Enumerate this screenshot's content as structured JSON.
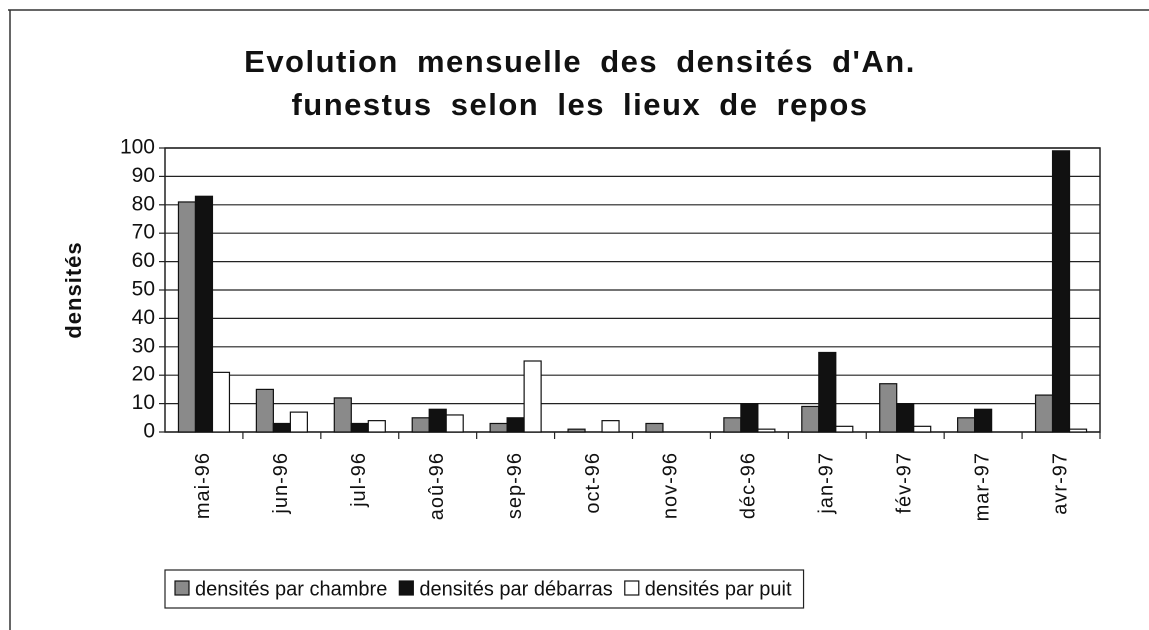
{
  "chart_data": {
    "type": "bar",
    "title": "Evolution mensuelle des densités d'An. funestus selon les lieux de repos",
    "y_label": "densités",
    "categories": [
      "mai-96",
      "jun-96",
      "jul-96",
      "aoû-96",
      "sep-96",
      "oct-96",
      "nov-96",
      "déc-96",
      "jan-97",
      "fév-97",
      "mar-97",
      "avr-97"
    ],
    "series": [
      {
        "name": "densités par chambre",
        "color": "#8a8a8a",
        "values": [
          81,
          15,
          12,
          5,
          3,
          1,
          3,
          5,
          9,
          17,
          5,
          13
        ]
      },
      {
        "name": "densités par débarras",
        "color": "#111111",
        "values": [
          83,
          3,
          3,
          8,
          5,
          0,
          0,
          10,
          28,
          10,
          8,
          99
        ]
      },
      {
        "name": "densités par puit",
        "color": "#ffffff",
        "values": [
          21,
          7,
          4,
          6,
          25,
          4,
          0,
          1,
          2,
          2,
          0,
          1
        ]
      }
    ],
    "ylim": [
      0,
      100
    ],
    "yticks": [
      0,
      10,
      20,
      30,
      40,
      50,
      60,
      70,
      80,
      90,
      100
    ],
    "grid": true,
    "legend": "bottom"
  }
}
